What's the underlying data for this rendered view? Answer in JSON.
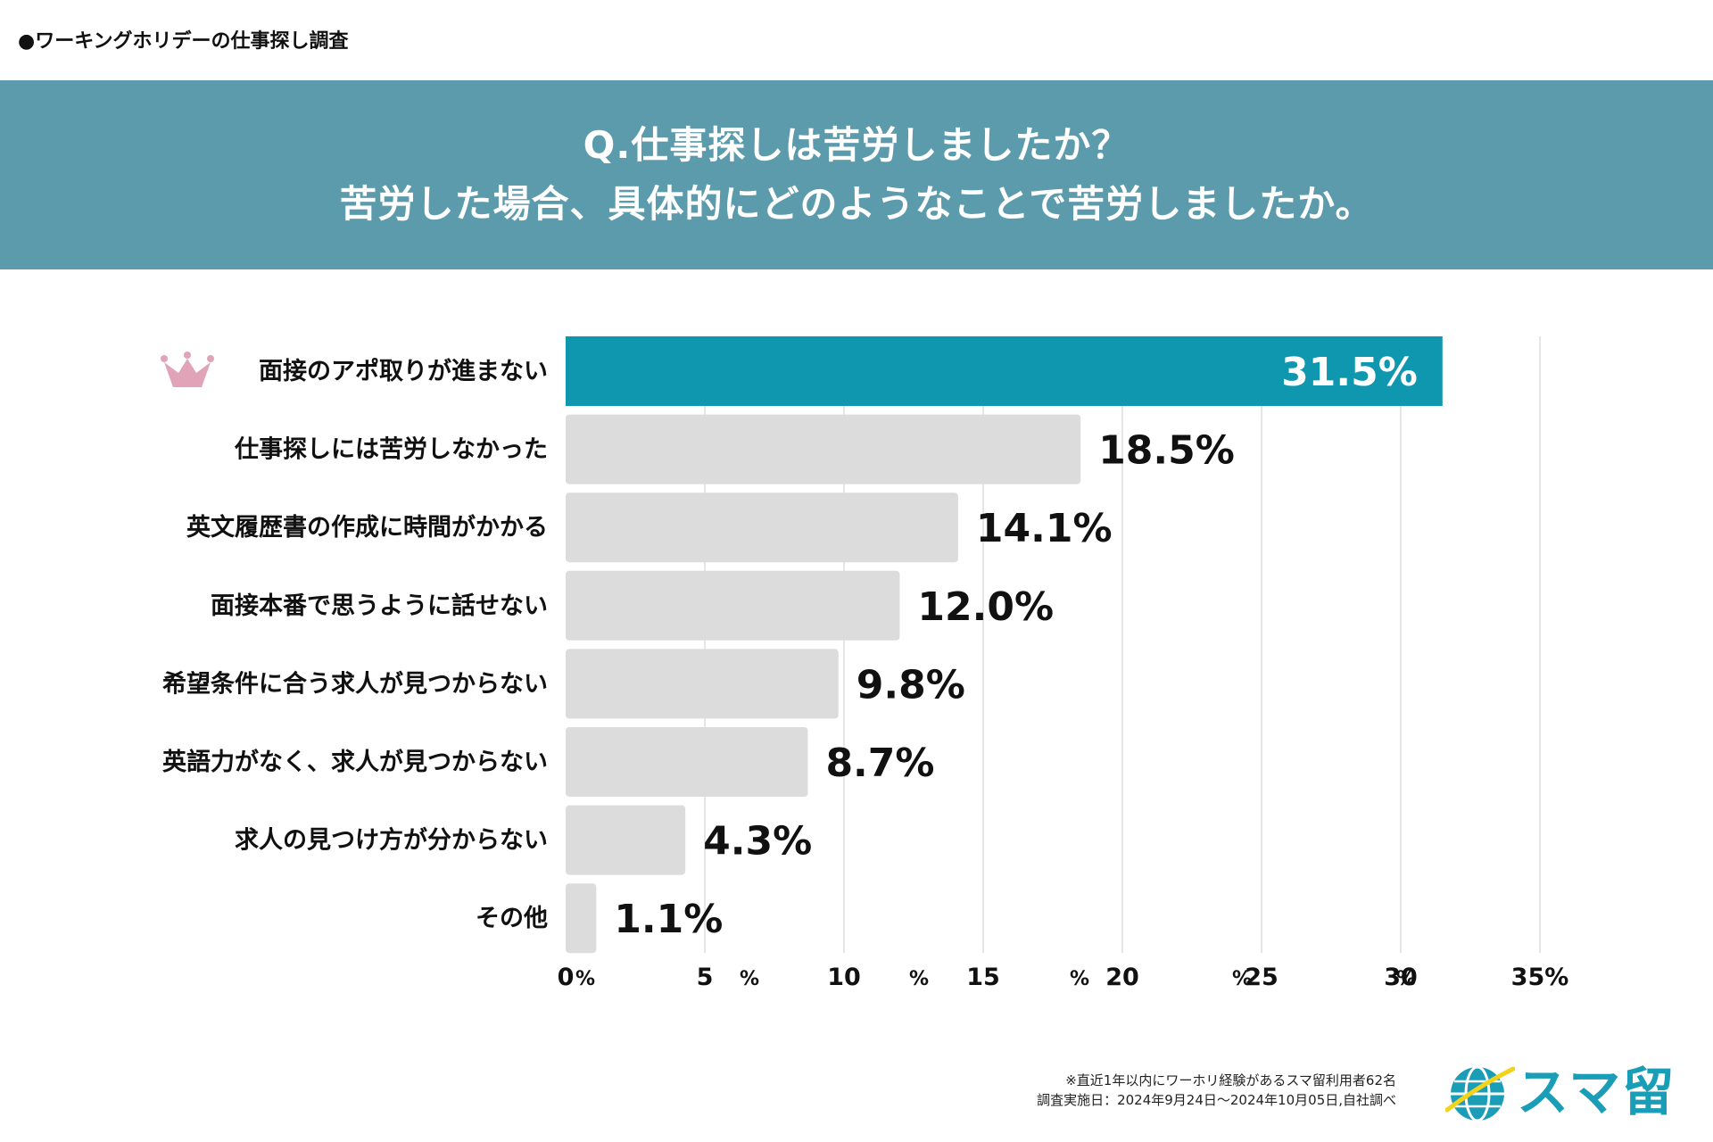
{
  "header": {
    "survey_label": "●ワーキングホリデーの仕事探し調査"
  },
  "banner": {
    "line1": "Q.仕事探しは苦労しましたか？",
    "line2": "苦労した場合、具体的にどのようなことで苦労しましたか。"
  },
  "chart_data": {
    "type": "bar",
    "orientation": "horizontal",
    "categories": [
      "面接のアポ取りが進まない",
      "仕事探しには苦労しなかった",
      "英文履歴書の作成に時間がかかる",
      "面接本番で思うように話せない",
      "希望条件に合う求人が見つからない",
      "英語力がなく、求人が見つからない",
      "求人の見つけ方が分からない",
      "その他"
    ],
    "values": [
      31.5,
      18.5,
      14.1,
      12.0,
      9.8,
      8.7,
      4.3,
      1.1
    ],
    "value_labels": [
      "31.5%",
      "18.5%",
      "14.1%",
      "12.0%",
      "9.8%",
      "8.7%",
      "4.3%",
      "1.1%"
    ],
    "xlim": [
      0,
      35
    ],
    "x_ticks": [
      0,
      5,
      10,
      15,
      20,
      25,
      30,
      35
    ],
    "x_tick_labels": [
      "0",
      "5",
      "10",
      "15",
      "20",
      "25",
      "30",
      "35%"
    ],
    "unit_marks": [
      "%",
      "%",
      "%",
      "%",
      "%",
      "%"
    ],
    "grid": true,
    "highlight_index": 0,
    "colors": {
      "highlight": "#0f97b0",
      "default": "#dcdcdc",
      "crown": "#e0a3b8",
      "grid": "#dddddd"
    }
  },
  "footnote": {
    "line1": "※直近1年以内にワーホリ経験があるスマ留利用者62名",
    "line2": "調査実施日：2024年9月24日〜2024年10月05日,自社調べ"
  },
  "logo": {
    "text": "スマ留",
    "icon": "globe-icon"
  }
}
